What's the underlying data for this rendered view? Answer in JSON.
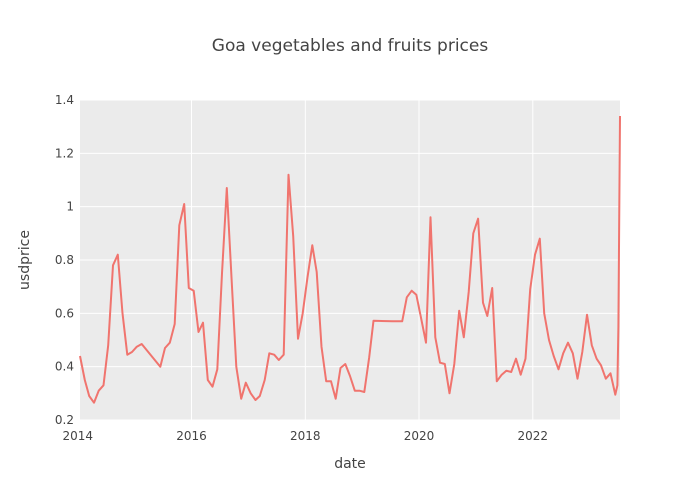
{
  "chart_data": {
    "type": "line",
    "title": "Goa vegetables and fruits prices",
    "xlabel": "date",
    "ylabel": "usdprice",
    "xlim": [
      "2014-01-15",
      "2023-07-15"
    ],
    "ylim": [
      0.2,
      1.4
    ],
    "x_ticks": [
      "2014",
      "2016",
      "2018",
      "2020",
      "2022"
    ],
    "y_ticks": [
      0.2,
      0.4,
      0.6,
      0.8,
      1.0,
      1.2,
      1.4
    ],
    "y_tick_labels": [
      "0.2",
      "0.4",
      "0.6",
      "0.8",
      "1",
      "1.2",
      "1.4"
    ],
    "grid": true,
    "legend": "none",
    "plot_background": "#ebebeb",
    "line_color": "#f0746e",
    "series": [
      {
        "points": [
          [
            "2014-01-15",
            0.44
          ],
          [
            "2014-02-15",
            0.35
          ],
          [
            "2014-03-15",
            0.29
          ],
          [
            "2014-04-15",
            0.265
          ],
          [
            "2014-05-15",
            0.31
          ],
          [
            "2014-06-15",
            0.33
          ],
          [
            "2014-07-15",
            0.48
          ],
          [
            "2014-08-15",
            0.78
          ],
          [
            "2014-09-15",
            0.82
          ],
          [
            "2014-10-15",
            0.6
          ],
          [
            "2014-11-15",
            0.445
          ],
          [
            "2014-12-15",
            0.455
          ],
          [
            "2015-01-15",
            0.475
          ],
          [
            "2015-02-15",
            0.485
          ],
          [
            "2015-06-15",
            0.4
          ],
          [
            "2015-07-15",
            0.47
          ],
          [
            "2015-08-15",
            0.49
          ],
          [
            "2015-09-15",
            0.56
          ],
          [
            "2015-10-15",
            0.93
          ],
          [
            "2015-11-15",
            1.01
          ],
          [
            "2015-12-15",
            0.695
          ],
          [
            "2016-01-15",
            0.685
          ],
          [
            "2016-02-15",
            0.53
          ],
          [
            "2016-03-15",
            0.565
          ],
          [
            "2016-04-15",
            0.35
          ],
          [
            "2016-05-15",
            0.325
          ],
          [
            "2016-06-15",
            0.39
          ],
          [
            "2016-07-15",
            0.75
          ],
          [
            "2016-08-15",
            1.07
          ],
          [
            "2016-09-15",
            0.72
          ],
          [
            "2016-10-15",
            0.4
          ],
          [
            "2016-11-15",
            0.28
          ],
          [
            "2016-12-15",
            0.34
          ],
          [
            "2017-01-15",
            0.3
          ],
          [
            "2017-02-15",
            0.275
          ],
          [
            "2017-03-15",
            0.29
          ],
          [
            "2017-04-15",
            0.35
          ],
          [
            "2017-05-15",
            0.45
          ],
          [
            "2017-06-15",
            0.445
          ],
          [
            "2017-07-15",
            0.425
          ],
          [
            "2017-08-15",
            0.445
          ],
          [
            "2017-09-15",
            1.12
          ],
          [
            "2017-10-15",
            0.89
          ],
          [
            "2017-11-15",
            0.505
          ],
          [
            "2017-12-15",
            0.6
          ],
          [
            "2018-01-15",
            0.735
          ],
          [
            "2018-02-15",
            0.855
          ],
          [
            "2018-03-15",
            0.755
          ],
          [
            "2018-04-15",
            0.475
          ],
          [
            "2018-05-15",
            0.345
          ],
          [
            "2018-06-15",
            0.345
          ],
          [
            "2018-07-15",
            0.28
          ],
          [
            "2018-08-15",
            0.395
          ],
          [
            "2018-09-15",
            0.41
          ],
          [
            "2018-10-15",
            0.365
          ],
          [
            "2018-11-15",
            0.31
          ],
          [
            "2018-12-15",
            0.31
          ],
          [
            "2019-01-15",
            0.305
          ],
          [
            "2019-02-15",
            0.435
          ],
          [
            "2019-03-15",
            0.572
          ],
          [
            "2019-07-15",
            0.57
          ],
          [
            "2019-09-15",
            0.57
          ],
          [
            "2019-10-15",
            0.66
          ],
          [
            "2019-11-15",
            0.685
          ],
          [
            "2019-12-15",
            0.67
          ],
          [
            "2020-01-15",
            0.58
          ],
          [
            "2020-02-15",
            0.49
          ],
          [
            "2020-03-15",
            0.96
          ],
          [
            "2020-04-15",
            0.51
          ],
          [
            "2020-05-15",
            0.415
          ],
          [
            "2020-06-15",
            0.41
          ],
          [
            "2020-07-15",
            0.3
          ],
          [
            "2020-08-15",
            0.41
          ],
          [
            "2020-09-15",
            0.61
          ],
          [
            "2020-10-15",
            0.51
          ],
          [
            "2020-11-15",
            0.68
          ],
          [
            "2020-12-15",
            0.9
          ],
          [
            "2021-01-15",
            0.955
          ],
          [
            "2021-02-15",
            0.64
          ],
          [
            "2021-03-15",
            0.59
          ],
          [
            "2021-04-15",
            0.695
          ],
          [
            "2021-05-15",
            0.345
          ],
          [
            "2021-06-15",
            0.37
          ],
          [
            "2021-07-15",
            0.385
          ],
          [
            "2021-08-15",
            0.38
          ],
          [
            "2021-09-15",
            0.43
          ],
          [
            "2021-10-15",
            0.37
          ],
          [
            "2021-11-15",
            0.43
          ],
          [
            "2021-12-15",
            0.69
          ],
          [
            "2022-01-15",
            0.82
          ],
          [
            "2022-02-15",
            0.88
          ],
          [
            "2022-03-15",
            0.6
          ],
          [
            "2022-04-15",
            0.5
          ],
          [
            "2022-05-15",
            0.44
          ],
          [
            "2022-06-15",
            0.39
          ],
          [
            "2022-07-15",
            0.45
          ],
          [
            "2022-08-15",
            0.49
          ],
          [
            "2022-09-15",
            0.45
          ],
          [
            "2022-10-15",
            0.355
          ],
          [
            "2022-11-15",
            0.455
          ],
          [
            "2022-12-15",
            0.595
          ],
          [
            "2023-01-15",
            0.48
          ],
          [
            "2023-02-15",
            0.43
          ],
          [
            "2023-03-15",
            0.405
          ],
          [
            "2023-04-15",
            0.355
          ],
          [
            "2023-05-15",
            0.375
          ],
          [
            "2023-06-15",
            0.295
          ],
          [
            "2023-06-28",
            0.33
          ],
          [
            "2023-07-05",
            0.55
          ],
          [
            "2023-07-15",
            1.34
          ]
        ]
      }
    ]
  }
}
